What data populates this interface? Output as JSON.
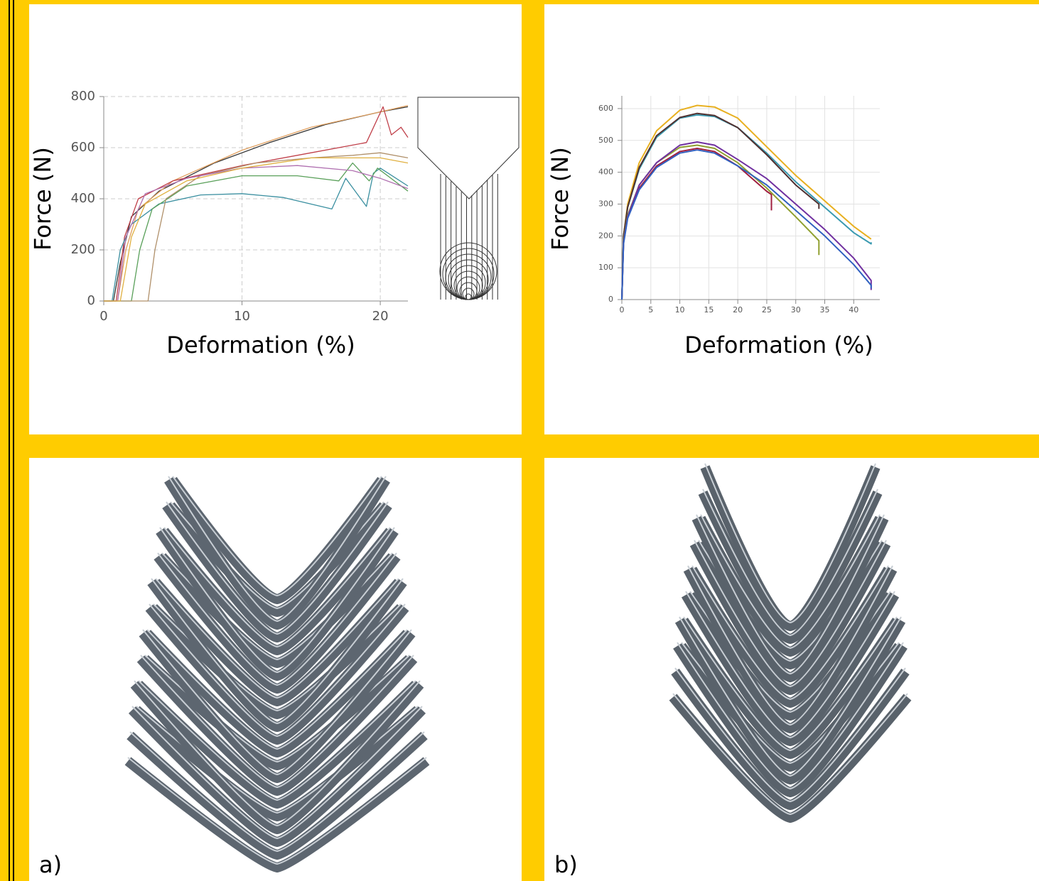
{
  "chart_data": [
    {
      "type": "line",
      "x_label": "Deformation (%)",
      "y_label": "Force (N)",
      "xlim": [
        0,
        22
      ],
      "xticks": [
        0,
        10,
        20
      ],
      "ylim": [
        0,
        800
      ],
      "yticks": [
        0,
        200,
        400,
        600,
        800
      ],
      "grid": true,
      "series": [
        {
          "color": "#333333",
          "x": [
            0,
            0.7,
            1.2,
            2,
            4,
            8,
            12,
            16,
            20,
            22
          ],
          "values": [
            0,
            0,
            150,
            330,
            430,
            540,
            620,
            690,
            740,
            760
          ]
        },
        {
          "color": "#e0a060",
          "x": [
            0,
            1,
            1.6,
            2.5,
            5,
            10,
            15,
            20,
            22
          ],
          "values": [
            0,
            0,
            200,
            360,
            470,
            590,
            680,
            740,
            765
          ]
        },
        {
          "color": "#c0404a",
          "x": [
            0,
            0.9,
            1.5,
            2.5,
            5,
            10,
            15,
            19,
            20.2,
            20.8,
            21.5,
            22
          ],
          "values": [
            0,
            0,
            250,
            400,
            470,
            530,
            580,
            620,
            760,
            650,
            680,
            640
          ]
        },
        {
          "color": "#3a8fa0",
          "x": [
            0,
            0.6,
            1.2,
            2,
            4,
            7,
            10,
            13,
            16.5,
            17.5,
            19,
            19.5,
            20,
            22
          ],
          "values": [
            0,
            0,
            200,
            300,
            380,
            415,
            420,
            405,
            360,
            480,
            370,
            500,
            520,
            450
          ]
        },
        {
          "color": "#5aa05a",
          "x": [
            0,
            2,
            2.6,
            3.5,
            6,
            10,
            14,
            17,
            18,
            19.2,
            19.8,
            22
          ],
          "values": [
            0,
            0,
            200,
            360,
            450,
            490,
            490,
            470,
            540,
            470,
            520,
            430
          ]
        },
        {
          "color": "#b0906a",
          "x": [
            0,
            3.2,
            3.7,
            4.5,
            7,
            11,
            15,
            18,
            20,
            22
          ],
          "values": [
            0,
            0,
            200,
            400,
            490,
            540,
            560,
            570,
            580,
            560
          ]
        },
        {
          "color": "#b070b0",
          "x": [
            0,
            1,
            1.6,
            3,
            6,
            10,
            14,
            18,
            20,
            22
          ],
          "values": [
            0,
            0,
            250,
            420,
            480,
            520,
            530,
            510,
            480,
            440
          ]
        },
        {
          "color": "#e0b040",
          "x": [
            0,
            1.2,
            2,
            3,
            6,
            10,
            15,
            20,
            22
          ],
          "values": [
            0,
            0,
            250,
            380,
            470,
            520,
            560,
            560,
            540
          ]
        }
      ]
    },
    {
      "type": "line",
      "x_label": "Deformation (%)",
      "y_label": "Force (N)",
      "xlim": [
        0,
        44.5
      ],
      "xticks": [
        0,
        5,
        10,
        15,
        20,
        25,
        30,
        35,
        40
      ],
      "ylim": [
        0,
        640
      ],
      "yticks": [
        0,
        100,
        200,
        300,
        400,
        500,
        600
      ],
      "grid": true,
      "series": [
        {
          "color": "#e8b020",
          "x": [
            0,
            0.3,
            1,
            3,
            6,
            10,
            13,
            16,
            20,
            25,
            30,
            35,
            40,
            43
          ],
          "values": [
            0,
            200,
            300,
            430,
            530,
            595,
            610,
            605,
            570,
            480,
            390,
            310,
            230,
            190
          ]
        },
        {
          "color": "#3a9ab0",
          "x": [
            0,
            0.3,
            1,
            3,
            6,
            10,
            13,
            16,
            20,
            25,
            30,
            35,
            40,
            43,
            43
          ],
          "values": [
            0,
            200,
            290,
            410,
            510,
            570,
            580,
            575,
            540,
            460,
            370,
            290,
            210,
            175,
            180
          ]
        },
        {
          "color": "#503030",
          "x": [
            0,
            0.3,
            1,
            3,
            6,
            10,
            13,
            16,
            20,
            25,
            30,
            34,
            34
          ],
          "values": [
            0,
            200,
            290,
            415,
            515,
            572,
            585,
            578,
            540,
            455,
            360,
            300,
            285
          ]
        },
        {
          "color": "#a02040",
          "x": [
            0,
            0.3,
            1,
            3,
            6,
            10,
            13,
            16,
            20,
            25,
            25.8,
            25.8
          ],
          "values": [
            0,
            180,
            260,
            350,
            420,
            465,
            475,
            465,
            420,
            340,
            330,
            280
          ]
        },
        {
          "color": "#90a030",
          "x": [
            0,
            0.3,
            1,
            3,
            6,
            10,
            13,
            16,
            20,
            25,
            30,
            34,
            34
          ],
          "values": [
            0,
            185,
            265,
            360,
            430,
            478,
            485,
            475,
            430,
            350,
            260,
            185,
            140
          ]
        },
        {
          "color": "#7030a0",
          "x": [
            0,
            0.3,
            1,
            3,
            6,
            10,
            13,
            16,
            20,
            25,
            30,
            35,
            40,
            43,
            43
          ],
          "values": [
            0,
            180,
            260,
            360,
            430,
            485,
            495,
            485,
            440,
            380,
            300,
            220,
            130,
            60,
            30
          ]
        },
        {
          "color": "#3060c0",
          "x": [
            0,
            0.3,
            1,
            3,
            6,
            10,
            13,
            16,
            20,
            25,
            30,
            35,
            40,
            43,
            43
          ],
          "values": [
            0,
            175,
            255,
            345,
            415,
            460,
            470,
            460,
            420,
            360,
            280,
            200,
            110,
            45,
            35
          ]
        }
      ]
    }
  ],
  "panel_labels": [
    "a)",
    "b)"
  ]
}
